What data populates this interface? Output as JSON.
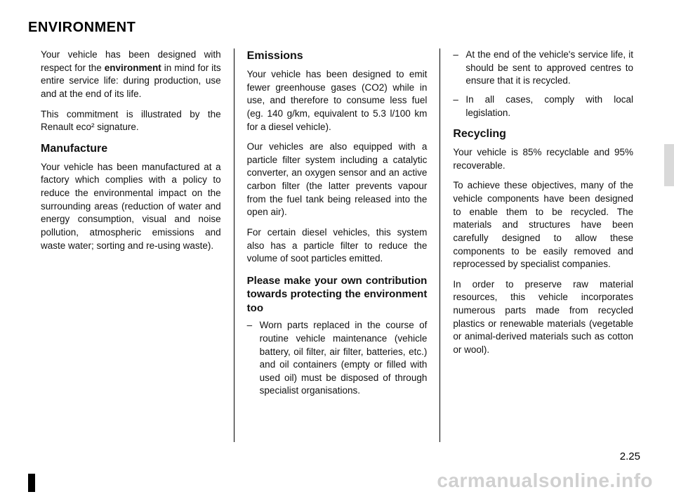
{
  "title": "ENVIRONMENT",
  "col1": {
    "intro1a": "Your vehicle has been designed with respect for the ",
    "intro1b": "environment",
    "intro1c": " in mind for its entire service life: during production, use and at the end of its life.",
    "intro2": "This commitment is illustrated by the Renault eco² signature.",
    "h_manufacture": "Manufacture",
    "manufacture_p": "Your vehicle has been manufactured at a factory which complies with a policy to reduce the environmental impact on the surrounding areas (reduction of water and energy consumption, visual and noise pollution, atmospheric emissions and waste water; sorting and re-using waste)."
  },
  "col2": {
    "h_emissions": "Emissions",
    "emissions_p1": "Your vehicle has been designed to emit fewer greenhouse gases (CO2) while in use, and therefore to consume less fuel (eg. 140 g/km, equivalent to 5.3 l/100 km for a diesel vehicle).",
    "emissions_p2": "Our vehicles are also equipped with a particle filter system including a catalytic converter, an oxygen sensor and an active carbon filter (the latter prevents vapour from the fuel tank being released into the open air).",
    "emissions_p3": "For certain diesel vehicles, this system also has a particle filter to reduce the volume of soot particles emitted.",
    "h_contrib": "Please make your own contribution towards protecting the environment too",
    "li_worn": "Worn parts replaced in the course of routine vehicle maintenance (vehicle battery, oil filter, air filter, batteries, etc.) and oil containers (empty or filled with used oil) must be disposed of through specialist organisations."
  },
  "col3": {
    "li_end": "At the end of the vehicle's service life, it should be sent to approved centres to ensure that it is recycled.",
    "li_cases": "In all cases, comply with local legislation.",
    "h_recycling": "Recycling",
    "recycling_p1": "Your vehicle is 85% recyclable and 95% recoverable.",
    "recycling_p2": "To achieve these objectives, many of the vehicle components have been designed to enable them to be recycled. The materials and structures have been carefully designed to allow these components to be easily removed and reprocessed by specialist companies.",
    "recycling_p3": "In order to preserve raw material resources, this vehicle incorporates numerous parts made from recycled plastics or renewable materials (vegetable or animal-derived materials such as cotton or wool)."
  },
  "pagenum": "2.25",
  "watermark": "carmanualsonline.info"
}
